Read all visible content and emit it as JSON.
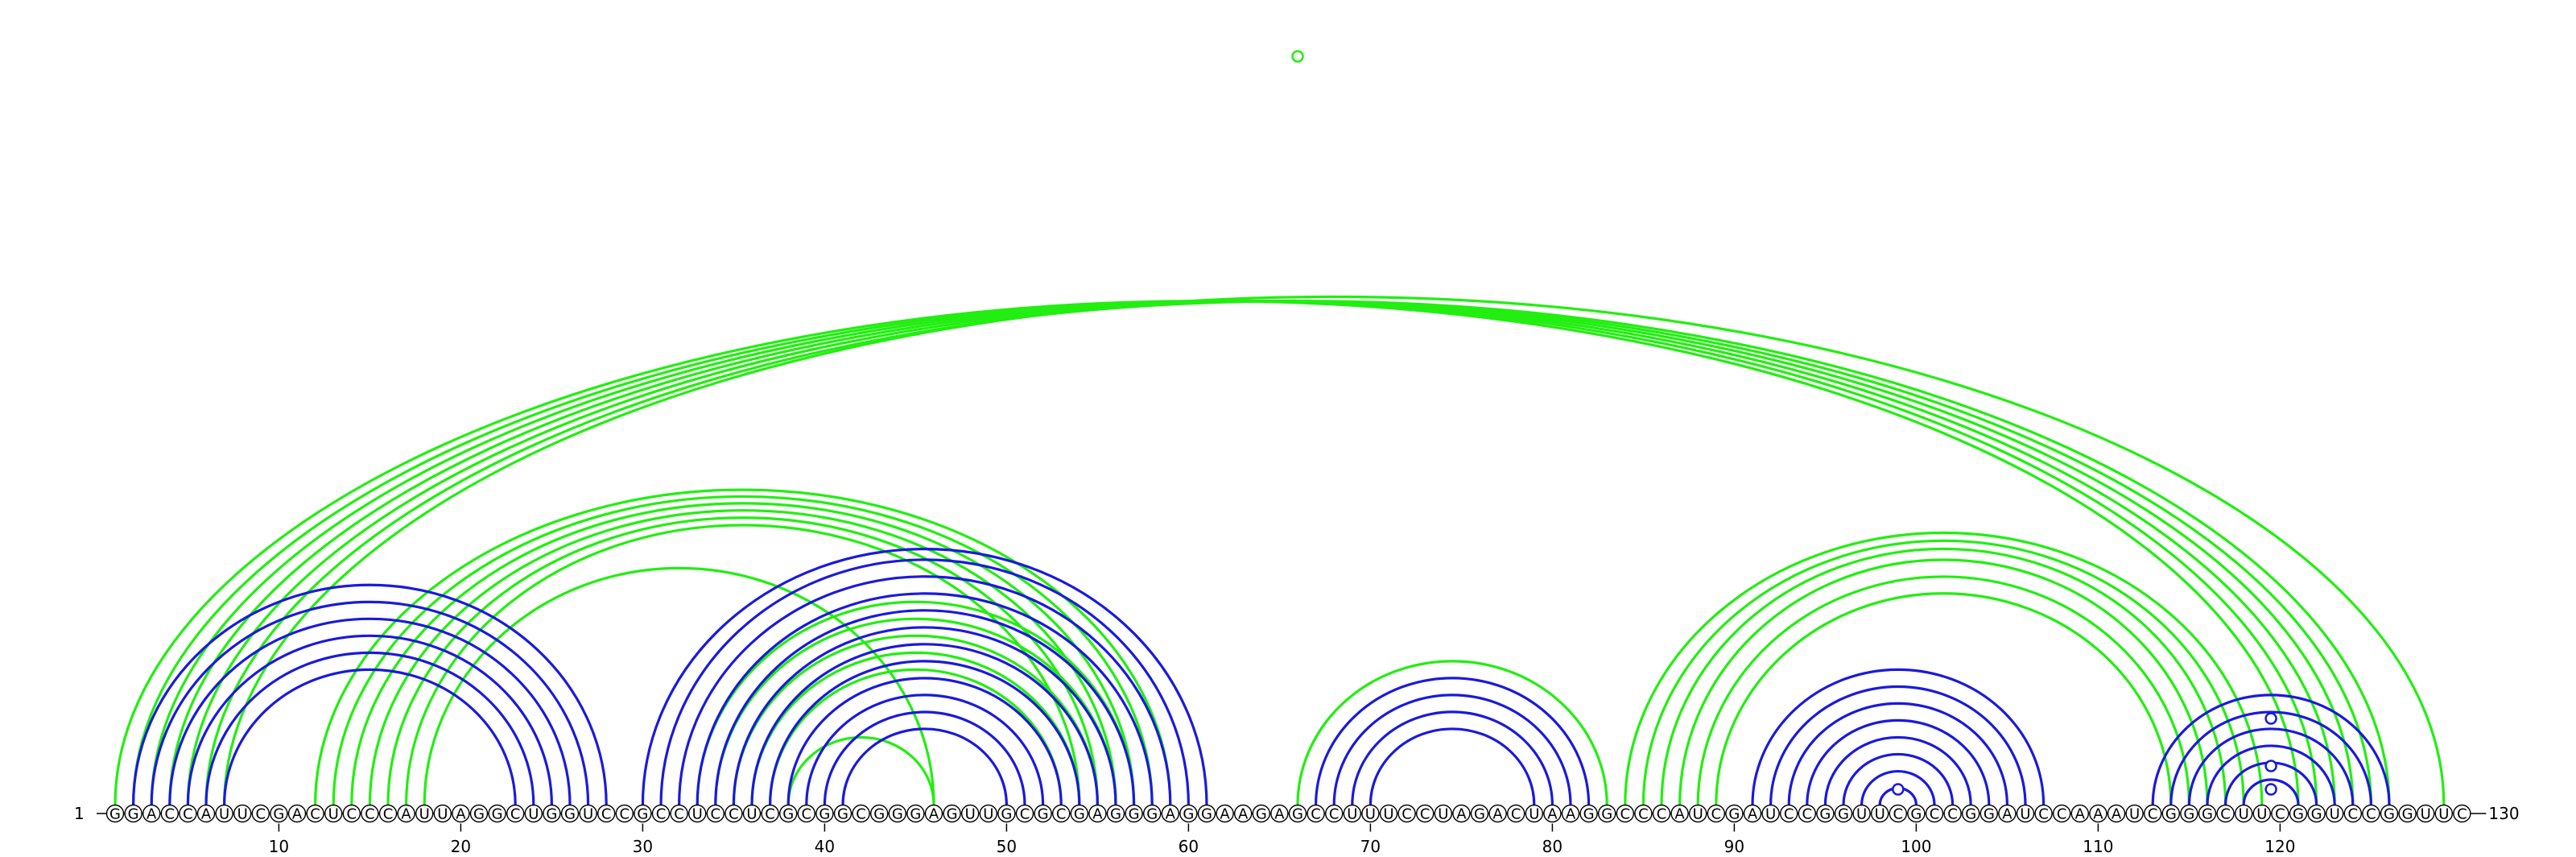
{
  "diagram": {
    "type": "rna-arc-diagram",
    "sequence": "GGACCAUUCGACUCCCAUUAGGCUGGUCCGCCUCCUCGCGGCGGGAGUUGCGCGAGGGAGGAAGAGCCUUUCCUAGACUAAGGCCCAUCGAUCCGGUUCGCCGGAUCCAAAUCGGGCUUCGGUCCGGUUC",
    "start_label": "1",
    "end_label": "130",
    "tick_labels": [
      "10",
      "20",
      "30",
      "40",
      "50",
      "60",
      "70",
      "80",
      "90",
      "100",
      "110",
      "120"
    ],
    "colors": {
      "blue": "#1a1adb",
      "green": "#22ee11",
      "line": "#000000"
    },
    "blue_pairs": [
      [
        2,
        28
      ],
      [
        3,
        27
      ],
      [
        4,
        26
      ],
      [
        5,
        25
      ],
      [
        6,
        24
      ],
      [
        7,
        23
      ],
      [
        30,
        61
      ],
      [
        31,
        60
      ],
      [
        32,
        59
      ],
      [
        33,
        58
      ],
      [
        34,
        57
      ],
      [
        35,
        56
      ],
      [
        36,
        55
      ],
      [
        37,
        54
      ],
      [
        38,
        53
      ],
      [
        39,
        52
      ],
      [
        40,
        51
      ],
      [
        41,
        50
      ],
      [
        67,
        82
      ],
      [
        68,
        81
      ],
      [
        69,
        80
      ],
      [
        70,
        79
      ],
      [
        91,
        107
      ],
      [
        92,
        106
      ],
      [
        93,
        105
      ],
      [
        94,
        104
      ],
      [
        95,
        103
      ],
      [
        96,
        102
      ],
      [
        97,
        101
      ],
      [
        98,
        100
      ],
      [
        113,
        126
      ],
      [
        114,
        125
      ],
      [
        115,
        124
      ],
      [
        116,
        123
      ],
      [
        117,
        122
      ],
      [
        118,
        121
      ]
    ],
    "green_pairs": [
      [
        1,
        121
      ],
      [
        2,
        122
      ],
      [
        3,
        123
      ],
      [
        4,
        124
      ],
      [
        5,
        125
      ],
      [
        6,
        126
      ],
      [
        7,
        129
      ],
      [
        12,
        59
      ],
      [
        13,
        58
      ],
      [
        14,
        57
      ],
      [
        15,
        56
      ],
      [
        16,
        55
      ],
      [
        17,
        54
      ],
      [
        18,
        46
      ],
      [
        33,
        57
      ],
      [
        34,
        56
      ],
      [
        35,
        55
      ],
      [
        36,
        54
      ],
      [
        37,
        53
      ],
      [
        38,
        46
      ],
      [
        66,
        83
      ],
      [
        84,
        119
      ],
      [
        85,
        118
      ],
      [
        86,
        117
      ],
      [
        87,
        116
      ],
      [
        88,
        115
      ],
      [
        89,
        114
      ]
    ],
    "markers": [
      {
        "pos": 66,
        "color": "green"
      },
      {
        "pos": 99,
        "color": "blue"
      },
      {
        "pos": 119.5,
        "color": "blue"
      },
      {
        "pos": 119.5,
        "color": "blue"
      },
      {
        "pos": 119.5,
        "color": "blue"
      }
    ]
  }
}
